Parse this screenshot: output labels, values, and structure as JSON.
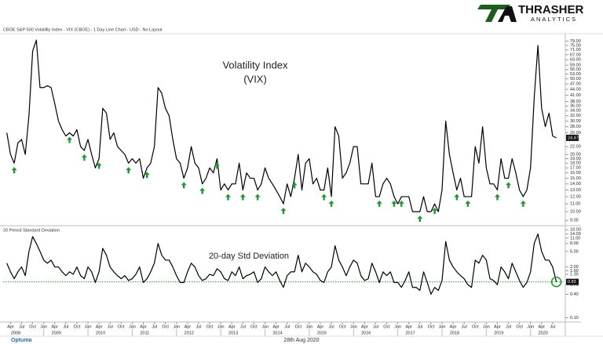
{
  "chart_data": {
    "type": "line",
    "title": "CBOE S&P 500 Volatility Index - VIX (CBOE) - 1 Day Line Chart - USD - No Layout",
    "brand": {
      "name": "THRASHER",
      "tagline": "ANALYTICS"
    },
    "footer": {
      "date": "28th Aug 2020",
      "vendor": "Optuma"
    },
    "x": [
      "2008-03",
      "2008-04",
      "2008-05",
      "2008-06",
      "2008-07",
      "2008-08",
      "2008-09",
      "2008-10",
      "2008-11",
      "2008-12",
      "2009-01",
      "2009-02",
      "2009-03",
      "2009-04",
      "2009-05",
      "2009-06",
      "2009-07",
      "2009-08",
      "2009-09",
      "2009-10",
      "2009-11",
      "2009-12",
      "2010-01",
      "2010-02",
      "2010-03",
      "2010-04",
      "2010-05",
      "2010-06",
      "2010-07",
      "2010-08",
      "2010-09",
      "2010-10",
      "2010-11",
      "2010-12",
      "2011-01",
      "2011-02",
      "2011-03",
      "2011-04",
      "2011-05",
      "2011-06",
      "2011-07",
      "2011-08",
      "2011-09",
      "2011-10",
      "2011-11",
      "2011-12",
      "2012-01",
      "2012-02",
      "2012-03",
      "2012-04",
      "2012-05",
      "2012-06",
      "2012-07",
      "2012-08",
      "2012-09",
      "2012-10",
      "2012-11",
      "2012-12",
      "2013-01",
      "2013-02",
      "2013-03",
      "2013-04",
      "2013-05",
      "2013-06",
      "2013-07",
      "2013-08",
      "2013-09",
      "2013-10",
      "2013-11",
      "2013-12",
      "2014-01",
      "2014-02",
      "2014-03",
      "2014-04",
      "2014-05",
      "2014-06",
      "2014-07",
      "2014-08",
      "2014-09",
      "2014-10",
      "2014-11",
      "2014-12",
      "2015-01",
      "2015-02",
      "2015-03",
      "2015-04",
      "2015-05",
      "2015-06",
      "2015-07",
      "2015-08",
      "2015-09",
      "2015-10",
      "2015-11",
      "2015-12",
      "2016-01",
      "2016-02",
      "2016-03",
      "2016-04",
      "2016-05",
      "2016-06",
      "2016-07",
      "2016-08",
      "2016-09",
      "2016-10",
      "2016-11",
      "2016-12",
      "2017-01",
      "2017-02",
      "2017-03",
      "2017-04",
      "2017-05",
      "2017-06",
      "2017-07",
      "2017-08",
      "2017-09",
      "2017-10",
      "2017-11",
      "2017-12",
      "2018-01",
      "2018-02",
      "2018-03",
      "2018-04",
      "2018-05",
      "2018-06",
      "2018-07",
      "2018-08",
      "2018-09",
      "2018-10",
      "2018-11",
      "2018-12",
      "2019-01",
      "2019-02",
      "2019-03",
      "2019-04",
      "2019-05",
      "2019-06",
      "2019-07",
      "2019-08",
      "2019-09",
      "2019-10",
      "2019-11",
      "2019-12",
      "2020-01",
      "2020-02",
      "2020-03",
      "2020-04",
      "2020-05",
      "2020-06",
      "2020-07",
      "2020-08"
    ],
    "xlim": [
      "2008-02",
      "2020-10"
    ],
    "xticks": [
      {
        "value": "2008-04",
        "label": "Apr"
      },
      {
        "value": "2008-07",
        "label": "Jul"
      },
      {
        "value": "2008-10",
        "label": "Oct"
      },
      {
        "value": "2009-01",
        "label": "Jan"
      },
      {
        "value": "2009-04",
        "label": "Apr"
      },
      {
        "value": "2009-07",
        "label": "Jul"
      },
      {
        "value": "2009-10",
        "label": "Oct"
      },
      {
        "value": "2010-01",
        "label": "Jan"
      },
      {
        "value": "2010-04",
        "label": "Apr"
      },
      {
        "value": "2010-07",
        "label": "Jul"
      },
      {
        "value": "2010-10",
        "label": "Oct"
      },
      {
        "value": "2011-01",
        "label": "Jan"
      },
      {
        "value": "2011-04",
        "label": "Apr"
      },
      {
        "value": "2011-07",
        "label": "Jul"
      },
      {
        "value": "2011-10",
        "label": "Oct"
      },
      {
        "value": "2012-01",
        "label": "Jan"
      },
      {
        "value": "2012-04",
        "label": "Apr"
      },
      {
        "value": "2012-07",
        "label": "Jul"
      },
      {
        "value": "2012-10",
        "label": "Oct"
      },
      {
        "value": "2013-01",
        "label": "Jan"
      },
      {
        "value": "2013-04",
        "label": "Apr"
      },
      {
        "value": "2013-07",
        "label": "Jul"
      },
      {
        "value": "2013-10",
        "label": "Oct"
      },
      {
        "value": "2014-01",
        "label": "Jan"
      },
      {
        "value": "2014-04",
        "label": "Apr"
      },
      {
        "value": "2014-07",
        "label": "Jul"
      },
      {
        "value": "2014-10",
        "label": "Oct"
      },
      {
        "value": "2015-01",
        "label": "Jan"
      },
      {
        "value": "2015-04",
        "label": "Apr"
      },
      {
        "value": "2015-07",
        "label": "Jul"
      },
      {
        "value": "2015-10",
        "label": "Oct"
      },
      {
        "value": "2016-01",
        "label": "Jan"
      },
      {
        "value": "2016-04",
        "label": "Apr"
      },
      {
        "value": "2016-07",
        "label": "Jul"
      },
      {
        "value": "2016-10",
        "label": "Oct"
      },
      {
        "value": "2017-01",
        "label": "Jan"
      },
      {
        "value": "2017-04",
        "label": "Apr"
      },
      {
        "value": "2017-07",
        "label": "Jul"
      },
      {
        "value": "2017-10",
        "label": "Oct"
      },
      {
        "value": "2018-01",
        "label": "Jan"
      },
      {
        "value": "2018-04",
        "label": "Apr"
      },
      {
        "value": "2018-07",
        "label": "Jul"
      },
      {
        "value": "2018-10",
        "label": "Oct"
      },
      {
        "value": "2019-01",
        "label": "Jan"
      },
      {
        "value": "2019-04",
        "label": "Apr"
      },
      {
        "value": "2019-07",
        "label": "Jul"
      },
      {
        "value": "2019-10",
        "label": "Oct"
      },
      {
        "value": "2020-01",
        "label": "Jan"
      },
      {
        "value": "2020-04",
        "label": "Apr"
      },
      {
        "value": "2020-07",
        "label": "Jul"
      }
    ],
    "years": [
      {
        "value": "2008-01",
        "label": "2008"
      },
      {
        "value": "2009-01",
        "label": "2009"
      },
      {
        "value": "2010-01",
        "label": "2010"
      },
      {
        "value": "2011-01",
        "label": "2011"
      },
      {
        "value": "2012-01",
        "label": "2012"
      },
      {
        "value": "2013-01",
        "label": "2013"
      },
      {
        "value": "2014-01",
        "label": "2014"
      },
      {
        "value": "2015-01",
        "label": "2015"
      },
      {
        "value": "2016-01",
        "label": "2016"
      },
      {
        "value": "2017-01",
        "label": "2017"
      },
      {
        "value": "2018-01",
        "label": "2018"
      },
      {
        "value": "2019-01",
        "label": "2019"
      },
      {
        "value": "2020-01",
        "label": "2020"
      }
    ],
    "panes": [
      {
        "annotation": [
          "Volatility Index",
          "(VIX)"
        ],
        "log_scale": true,
        "ylim": [
          8.6,
          84
        ],
        "yticks": [
          {
            "value": 9,
            "label": "9.00"
          },
          {
            "value": 10,
            "label": "10.00"
          },
          {
            "value": 11,
            "label": "11.00"
          },
          {
            "value": 12,
            "label": "12.00"
          },
          {
            "value": 13,
            "label": "13.00"
          },
          {
            "value": 14,
            "label": "14.00"
          },
          {
            "value": 15,
            "label": "15.00"
          },
          {
            "value": 16,
            "label": "16.00"
          },
          {
            "value": 17,
            "label": "17.00"
          },
          {
            "value": 18,
            "label": "18.00"
          },
          {
            "value": 19,
            "label": "19.00"
          },
          {
            "value": 20,
            "label": "20.00"
          },
          {
            "value": 22,
            "label": "22.00"
          },
          {
            "value": 26,
            "label": "26.00"
          },
          {
            "value": 28,
            "label": "28.00"
          },
          {
            "value": 30,
            "label": "30.00"
          },
          {
            "value": 32,
            "label": "32.00"
          },
          {
            "value": 34,
            "label": "34.00"
          },
          {
            "value": 36,
            "label": "36.00"
          },
          {
            "value": 38,
            "label": "38.00"
          },
          {
            "value": 41,
            "label": "41.00"
          },
          {
            "value": 44,
            "label": "44.00"
          },
          {
            "value": 47,
            "label": "47.00"
          },
          {
            "value": 50,
            "label": "50.00"
          },
          {
            "value": 53,
            "label": "53.00"
          },
          {
            "value": 56,
            "label": "56.00"
          },
          {
            "value": 59,
            "label": "59.00"
          },
          {
            "value": 63,
            "label": "63.00"
          },
          {
            "value": 67,
            "label": "67.00"
          },
          {
            "value": 71,
            "label": "71.00"
          },
          {
            "value": 75,
            "label": "75.00"
          },
          {
            "value": 79,
            "label": "79.00"
          }
        ],
        "signals": {
          "color": "#1e9a2a",
          "x": [
            "2008-05",
            "2009-08",
            "2009-12",
            "2010-04",
            "2010-12",
            "2011-05",
            "2012-03",
            "2012-08",
            "2012-12",
            "2013-03",
            "2013-07",
            "2013-11",
            "2014-06",
            "2014-09",
            "2015-05",
            "2015-07",
            "2016-08",
            "2016-12",
            "2017-02",
            "2017-07",
            "2017-11",
            "2018-05",
            "2018-08",
            "2019-04",
            "2019-07",
            "2019-11"
          ]
        },
        "series": [
          {
            "color": "#000000",
            "values": [
              26,
              20,
              18,
              23,
              24,
              20,
              32,
              70,
              80,
              45,
              45,
              46,
              45,
              37,
              30,
              27,
              25,
              26,
              25,
              27,
              22,
              21,
              24,
              20,
              17,
              19,
              35,
              33,
              24,
              26,
              22,
              21,
              20,
              18,
              19,
              18,
              19,
              15,
              17,
              18,
              22,
              45,
              42,
              35,
              32,
              24,
              19,
              18,
              15,
              17,
              22,
              18,
              17,
              14,
              15,
              17,
              16,
              19,
              13,
              14,
              13,
              14,
              14,
              18,
              13,
              16,
              15,
              15,
              13,
              14,
              17,
              15,
              14,
              13,
              12,
              11,
              14,
              12,
              15,
              20,
              13,
              18,
              19,
              14,
              15,
              13,
              13,
              17,
              12,
              28,
              25,
              15,
              16,
              18,
              22,
              22,
              14,
              14,
              14,
              18,
              12,
              12,
              14,
              15,
              14,
              12,
              11,
              12,
              12,
              12,
              10,
              10,
              10,
              12,
              10,
              10,
              11,
              10,
              13,
              30,
              20,
              16,
              13,
              15,
              12,
              12,
              12,
              22,
              18,
              28,
              17,
              14,
              14,
              13,
              19,
              15,
              15,
              19,
              16,
              13,
              12,
              13,
              17,
              40,
              75,
              35,
              28,
              33,
              25,
              24.47
            ],
            "last_label": "24.47"
          }
        ]
      },
      {
        "label": "20 Period Standard Deviation",
        "annotation": [
          "20-day Std Deviation"
        ],
        "log_scale": true,
        "ylim": [
          0.085,
          19
        ],
        "yticks": [
          {
            "value": 0.1,
            "label": "0.10"
          },
          {
            "value": 0.4,
            "label": "0.40"
          },
          {
            "value": 0.7,
            "label": "0.70"
          },
          {
            "value": 1.3,
            "label": "1.30"
          },
          {
            "value": 1.6,
            "label": "1.60"
          },
          {
            "value": 2,
            "label": "2.00"
          },
          {
            "value": 5,
            "label": "5.00"
          },
          {
            "value": 8,
            "label": "8.00"
          },
          {
            "value": 11,
            "label": "11.00"
          },
          {
            "value": 14,
            "label": "14.00"
          },
          {
            "value": 18,
            "label": "18.00"
          }
        ],
        "reference_line": {
          "value": 0.83,
          "color": "#1e9a2a"
        },
        "series": [
          {
            "color": "#000000",
            "values": [
              2.5,
              1.5,
              1,
              1.5,
              2,
              1.2,
              5,
              12,
              8,
              5,
              3,
              2.5,
              3,
              2,
              2,
              1.5,
              1.2,
              1.5,
              1.3,
              2,
              1.2,
              1.0,
              2,
              1.5,
              0.8,
              1.5,
              6,
              4,
              2,
              1.5,
              1.2,
              1.0,
              1.2,
              0.9,
              1.0,
              1.3,
              2,
              0.8,
              1,
              1.5,
              2.5,
              8,
              4,
              3,
              3,
              2,
              1.2,
              0.8,
              0.8,
              1.5,
              2.5,
              2,
              1.2,
              0.9,
              1,
              1.3,
              1.2,
              1.8,
              1.5,
              1,
              0.9,
              1.5,
              1.2,
              2,
              1,
              1.2,
              1.3,
              1.5,
              0.8,
              1,
              2,
              1.5,
              1.2,
              1.5,
              0.9,
              0.6,
              1.2,
              1.5,
              1.5,
              4,
              1.5,
              2.5,
              2,
              1.5,
              1.3,
              0.9,
              0.8,
              1.5,
              2,
              7,
              3,
              2,
              1.2,
              2,
              3,
              2.5,
              1.2,
              0.9,
              1,
              2.5,
              1.5,
              0.8,
              1.5,
              1.2,
              1.5,
              0.8,
              0.8,
              0.6,
              0.9,
              1.5,
              0.6,
              0.6,
              0.5,
              1.5,
              0.8,
              0.4,
              0.6,
              0.5,
              0.9,
              9,
              3,
              2,
              1.5,
              1.2,
              1,
              0.7,
              0.6,
              3,
              2.5,
              4,
              3,
              1,
              0.9,
              0.7,
              2,
              1.5,
              1,
              2.5,
              1.5,
              0.9,
              0.6,
              0.8,
              1.5,
              8,
              14,
              5,
              3,
              3,
              2,
              0.83
            ],
            "last_label": "0.83"
          }
        ]
      }
    ]
  }
}
